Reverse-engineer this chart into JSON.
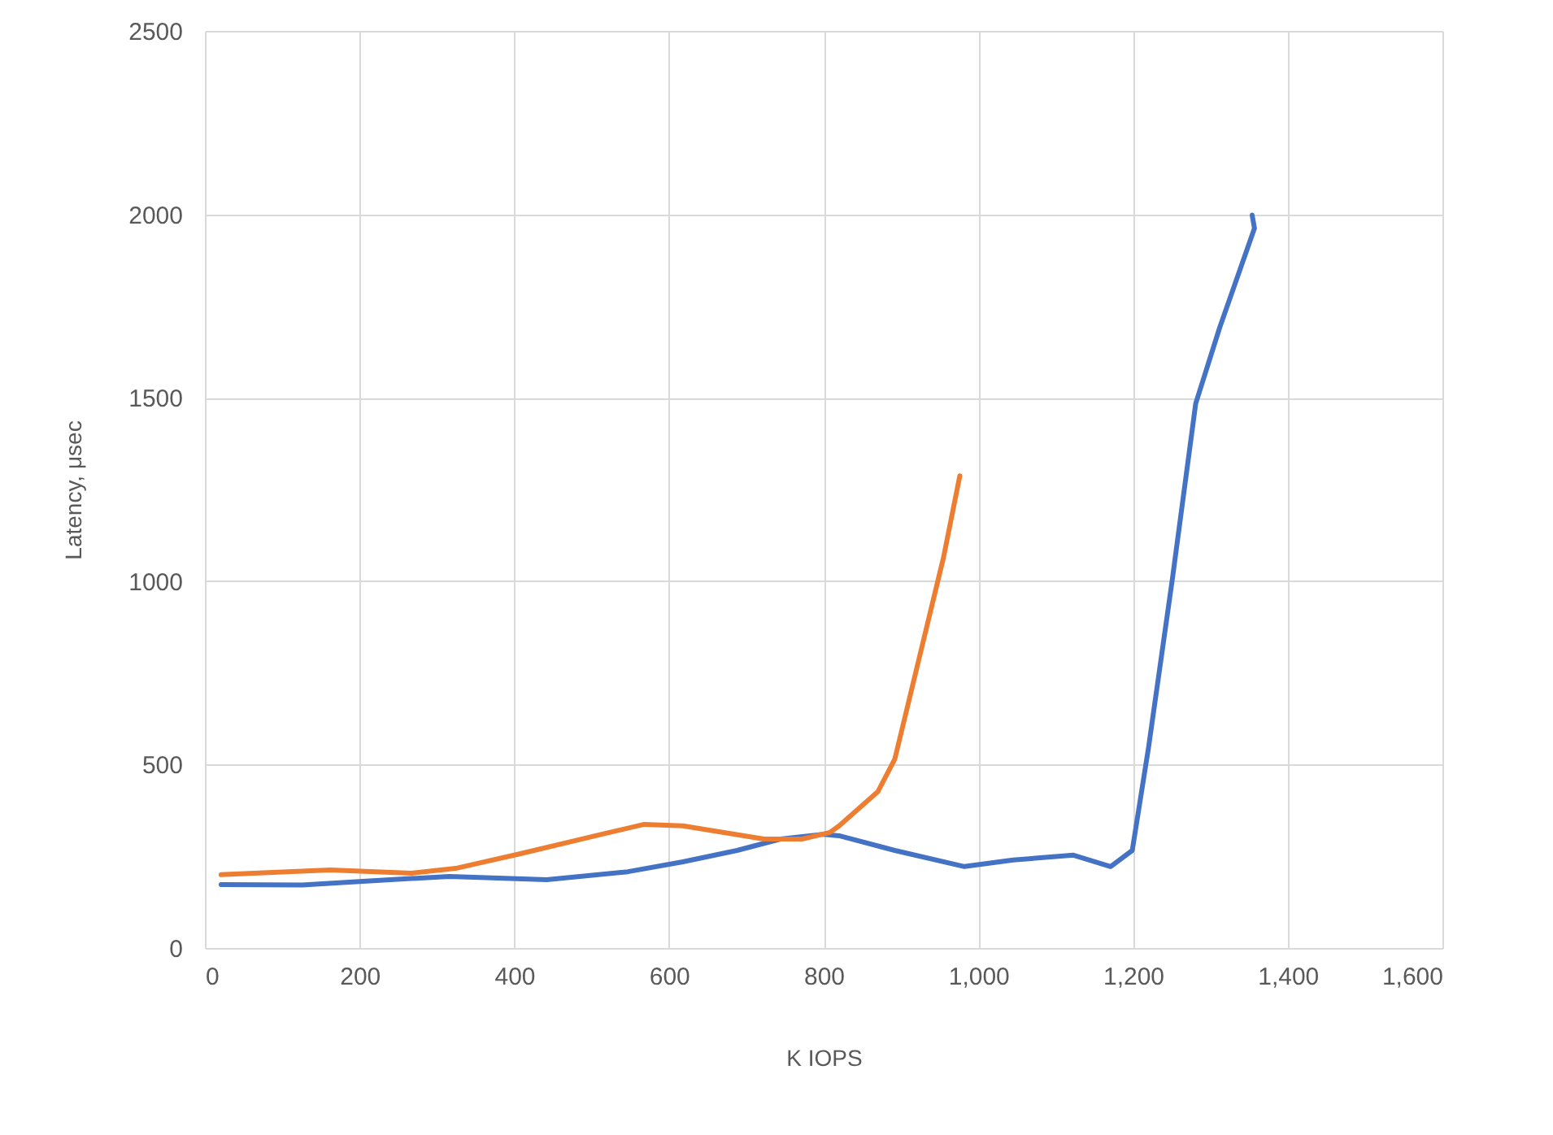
{
  "chart_data": {
    "type": "line",
    "xlabel": "K IOPS",
    "ylabel": "Latency, μsec",
    "series": [
      {
        "color": "#4472c4",
        "x": [
          21,
          126,
          204,
          316,
          442,
          547,
          618,
          688,
          744,
          799,
          820,
          892,
          982,
          1045,
          1123,
          1171,
          1199,
          1220,
          1251,
          1281,
          1312,
          1357,
          1354
        ],
        "values": [
          173,
          172,
          182,
          195,
          186,
          208,
          235,
          266,
          297,
          310,
          306,
          266,
          222,
          240,
          253,
          222,
          266,
          546,
          1008,
          1484,
          1691,
          1962,
          1998
        ]
      },
      {
        "color": "#ed7d31",
        "x": [
          21,
          162,
          267,
          324,
          408,
          513,
          568,
          618,
          723,
          772,
          808,
          820,
          870,
          892,
          926,
          955,
          976
        ],
        "values": [
          200,
          213,
          204,
          217,
          257,
          310,
          337,
          333,
          297,
          297,
          315,
          333,
          426,
          515,
          812,
          1065,
          1287
        ]
      }
    ],
    "xlim": [
      0,
      1600
    ],
    "xticks": [
      0,
      200,
      400,
      600,
      800,
      {
        "value": 1000,
        "label": "1,000"
      },
      {
        "value": 1200,
        "label": "1,200"
      },
      {
        "value": 1400,
        "label": "1,400"
      },
      {
        "value": 1600,
        "label": "1,600"
      }
    ],
    "ylim": [
      0,
      2500
    ],
    "yticks": [
      0,
      500,
      1000,
      1500,
      2000,
      2500
    ],
    "grid": true,
    "line_style": "solid"
  }
}
